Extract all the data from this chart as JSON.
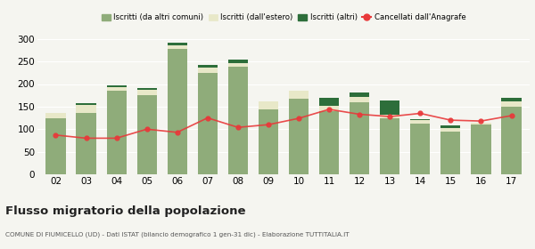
{
  "years": [
    "02",
    "03",
    "04",
    "05",
    "06",
    "07",
    "08",
    "09",
    "10",
    "11",
    "12",
    "13",
    "14",
    "15",
    "16",
    "17"
  ],
  "iscritti_comuni": [
    125,
    135,
    185,
    175,
    278,
    225,
    238,
    143,
    168,
    140,
    160,
    125,
    112,
    95,
    110,
    150
  ],
  "iscritti_estero": [
    10,
    18,
    8,
    12,
    8,
    12,
    8,
    18,
    18,
    12,
    12,
    8,
    8,
    8,
    5,
    12
  ],
  "iscritti_altri": [
    0,
    5,
    5,
    5,
    5,
    5,
    8,
    0,
    0,
    18,
    10,
    30,
    3,
    5,
    0,
    8
  ],
  "cancellati": [
    87,
    80,
    80,
    100,
    93,
    125,
    104,
    110,
    124,
    144,
    133,
    128,
    135,
    120,
    118,
    130
  ],
  "color_comuni": "#8fac7a",
  "color_estero": "#e8e8c8",
  "color_altri": "#2d6e3a",
  "color_cancellati": "#e8393a",
  "ylim": [
    0,
    320
  ],
  "yticks": [
    0,
    50,
    100,
    150,
    200,
    250,
    300
  ],
  "title": "Flusso migratorio della popolazione",
  "subtitle": "COMUNE DI FIUMICELLO (UD) - Dati ISTAT (bilancio demografico 1 gen-31 dic) - Elaborazione TUTTITALIA.IT",
  "legend_labels": [
    "Iscritti (da altri comuni)",
    "Iscritti (dall'estero)",
    "Iscritti (altri)",
    "Cancellati dall'Anagrafe"
  ],
  "bg_color": "#f5f5f0"
}
